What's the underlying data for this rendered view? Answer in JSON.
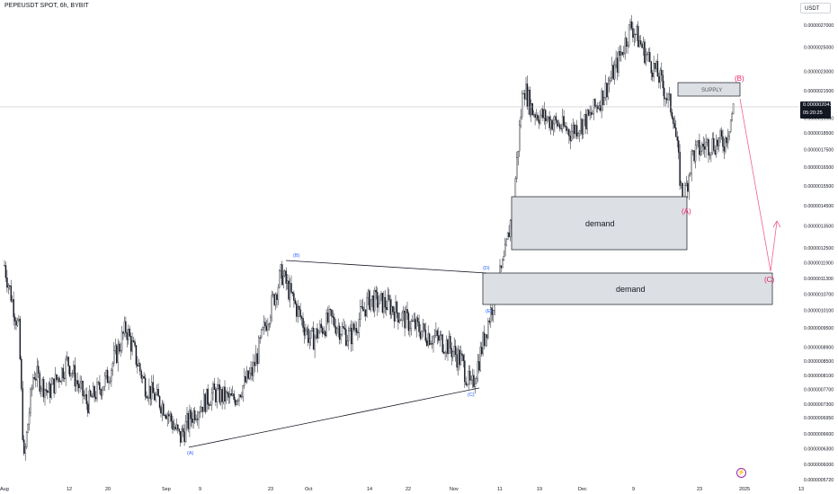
{
  "header": {
    "symbol_title": "PEPEUSDT SPOT, 6h, BYBIT",
    "currency": "USDT"
  },
  "price_tag": {
    "price": "0.000002041",
    "timer": "05:20:25"
  },
  "indicator_icon": "lightning-icon",
  "colors": {
    "candle": "#131722",
    "reference_line": "#b2b5be",
    "zone_fill": "#dcdfe3",
    "wave_label_blue": "#2962ff",
    "wave_label_red": "#e91e63",
    "forecast_line": "#f06292",
    "price_tag_bg": "#131722",
    "event_icon": "#9c27b0"
  },
  "chart_data": {
    "type": "candlestick",
    "symbol": "PEPEUSDT",
    "exchange": "BYBIT",
    "timeframe": "6h",
    "current_price": 2.041e-06,
    "y_scale": "log",
    "ylim": [
      5.5e-07,
      2.9e-06
    ],
    "y_ticks": [
      "0.0000027000",
      "0.0000025000",
      "0.0000023000",
      "0.0000021500",
      "0.0000019500",
      "0.0000018500",
      "0.0000017500",
      "0.0000016500",
      "0.0000015500",
      "0.0000014500",
      "0.0000013500",
      "0.0000012500",
      "0.0000011900",
      "0.0000011300",
      "0.0000010700",
      "0.0000010100",
      "0.0000009500",
      "0.0000008900",
      "0.0000008500",
      "0.0000008100",
      "0.0000007700",
      "0.0000007300",
      "0.0000006950",
      "0.0000006600",
      "0.0000006300",
      "0.0000006000",
      "0.0000005720"
    ],
    "x_ticks": [
      "Aug",
      "12",
      "20",
      "Sep",
      "9",
      "23",
      "Oct",
      "14",
      "22",
      "Nov",
      "11",
      "19",
      "Dec",
      "9",
      "23",
      "2025",
      "13"
    ],
    "price_path": [
      [
        "2024-08-01",
        1.18e-06
      ],
      [
        "2024-08-04",
        9.4e-07
      ],
      [
        "2024-08-05",
        6e-07
      ],
      [
        "2024-08-07",
        8.2e-07
      ],
      [
        "2024-08-10",
        7.6e-07
      ],
      [
        "2024-08-14",
        8.5e-07
      ],
      [
        "2024-08-18",
        7.3e-07
      ],
      [
        "2024-08-22",
        8e-07
      ],
      [
        "2024-08-26",
        9.5e-07
      ],
      [
        "2024-08-30",
        7.8e-07
      ],
      [
        "2024-09-03",
        7.2e-07
      ],
      [
        "2024-09-06",
        6.5e-07
      ],
      [
        "2024-09-09",
        7.1e-07
      ],
      [
        "2024-09-13",
        7.6e-07
      ],
      [
        "2024-09-17",
        7.4e-07
      ],
      [
        "2024-09-21",
        8.2e-07
      ],
      [
        "2024-09-24",
        9.8e-07
      ],
      [
        "2024-09-27",
        1.15e-06
      ],
      [
        "2024-09-30",
        1.02e-06
      ],
      [
        "2024-10-03",
        9.1e-07
      ],
      [
        "2024-10-07",
        9.8e-07
      ],
      [
        "2024-10-11",
        9.2e-07
      ],
      [
        "2024-10-15",
        1.05e-06
      ],
      [
        "2024-10-19",
        1.03e-06
      ],
      [
        "2024-10-23",
        9.7e-07
      ],
      [
        "2024-10-27",
        9.3e-07
      ],
      [
        "2024-10-31",
        9e-07
      ],
      [
        "2024-11-03",
        8.5e-07
      ],
      [
        "2024-11-05",
        7.7e-07
      ],
      [
        "2024-11-07",
        8.8e-07
      ],
      [
        "2024-11-10",
        1.07e-06
      ],
      [
        "2024-11-12",
        1.2e-06
      ],
      [
        "2024-11-14",
        1.48e-06
      ],
      [
        "2024-11-16",
        2.2e-06
      ],
      [
        "2024-11-18",
        2e-06
      ],
      [
        "2024-11-22",
        1.93e-06
      ],
      [
        "2024-11-26",
        1.86e-06
      ],
      [
        "2024-11-30",
        1.95e-06
      ],
      [
        "2024-12-03",
        2.12e-06
      ],
      [
        "2024-12-06",
        2.36e-06
      ],
      [
        "2024-12-09",
        2.7e-06
      ],
      [
        "2024-12-12",
        2.45e-06
      ],
      [
        "2024-12-15",
        2.25e-06
      ],
      [
        "2024-12-18",
        1.98e-06
      ],
      [
        "2024-12-20",
        1.45e-06
      ],
      [
        "2024-12-22",
        1.72e-06
      ],
      [
        "2024-12-25",
        1.78e-06
      ],
      [
        "2024-12-29",
        1.8e-06
      ],
      [
        "2024-12-31",
        2.05e-06
      ]
    ],
    "zones": [
      {
        "label": "SUPPLY",
        "from": "2024-12-18",
        "to": "2024-12-31",
        "low": 2.03e-06,
        "high": 2.2e-06
      },
      {
        "label": "demand",
        "from": "2024-11-13",
        "to": "2024-12-20",
        "low": 1.25e-06,
        "high": 1.48e-06
      },
      {
        "label": "demand",
        "from": "2024-11-07",
        "to": "2025-01-02",
        "low": 1.04e-06,
        "high": 1.15e-06
      }
    ],
    "wave_labels": [
      {
        "text": "(A)",
        "date": "2024-09-07",
        "price": 6.3e-07,
        "color": "blue"
      },
      {
        "text": "(B)",
        "date": "2024-09-26",
        "price": 1.2e-06,
        "color": "blue"
      },
      {
        "text": "(C)",
        "date": "2024-11-05",
        "price": 7.5e-07,
        "color": "blue"
      },
      {
        "text": "(D)",
        "date": "2024-11-07",
        "price": 1.17e-06,
        "color": "blue"
      },
      {
        "text": "(E)",
        "date": "2024-11-08",
        "price": 1.01e-06,
        "color": "blue"
      },
      {
        "text": "(A)",
        "date": "2024-12-20",
        "price": 1.4e-06,
        "color": "red"
      },
      {
        "text": "(B)",
        "date": "2024-12-31",
        "price": 2.2e-06,
        "color": "red"
      },
      {
        "text": "(C)",
        "date": "2025-01-02",
        "price": 1.1e-06,
        "color": "red"
      }
    ]
  }
}
